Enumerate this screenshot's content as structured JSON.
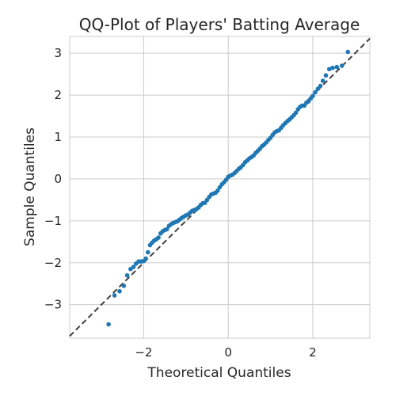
{
  "chart_data": {
    "type": "scatter",
    "title": "QQ-Plot of Players' Batting Average",
    "xlabel": "Theoretical Quantiles",
    "ylabel": "Sample Quantiles",
    "xlim": [
      -3.75,
      3.35
    ],
    "ylim": [
      -3.8,
      3.4
    ],
    "xticks": [
      -2,
      0,
      2
    ],
    "yticks": [
      -3,
      -2,
      -1,
      0,
      1,
      2,
      3
    ],
    "xtick_labels": [
      "−2",
      "0",
      "2"
    ],
    "ytick_labels": [
      "−3",
      "−2",
      "−1",
      "0",
      "1",
      "2",
      "3"
    ],
    "grid": true,
    "legend": "none",
    "point_color": "#1f77b4",
    "line_color": "#404040",
    "reference_line": {
      "slope": 1,
      "intercept": 0,
      "style": "dashed"
    },
    "points": {
      "x": [
        -2.83,
        -2.69,
        -2.57,
        -2.47,
        -2.39,
        -2.31,
        -2.24,
        -2.18,
        -2.12,
        -2.06,
        -2.0,
        -1.95,
        -1.9,
        -1.85,
        -1.8,
        -1.75,
        -1.7,
        -1.65,
        -1.6,
        -1.55,
        -1.5,
        -1.45,
        -1.4,
        -1.35,
        -1.3,
        -1.25,
        -1.2,
        -1.15,
        -1.1,
        -1.05,
        -1.0,
        -0.95,
        -0.9,
        -0.85,
        -0.8,
        -0.75,
        -0.7,
        -0.65,
        -0.6,
        -0.55,
        -0.5,
        -0.45,
        -0.4,
        -0.35,
        -0.3,
        -0.25,
        -0.2,
        -0.15,
        -0.1,
        -0.05,
        0.0,
        0.05,
        0.1,
        0.15,
        0.2,
        0.25,
        0.3,
        0.35,
        0.4,
        0.45,
        0.5,
        0.55,
        0.6,
        0.65,
        0.7,
        0.75,
        0.8,
        0.85,
        0.9,
        0.95,
        1.0,
        1.05,
        1.1,
        1.15,
        1.2,
        1.25,
        1.3,
        1.35,
        1.4,
        1.45,
        1.5,
        1.55,
        1.6,
        1.65,
        1.7,
        1.75,
        1.8,
        1.85,
        1.9,
        1.95,
        2.0,
        2.06,
        2.12,
        2.18,
        2.24,
        2.31,
        2.39,
        2.47,
        2.57,
        2.69,
        2.83
      ],
      "y": [
        -3.47,
        -2.78,
        -2.68,
        -2.55,
        -2.3,
        -2.15,
        -2.1,
        -2.02,
        -1.97,
        -1.97,
        -1.96,
        -1.9,
        -1.75,
        -1.58,
        -1.52,
        -1.47,
        -1.44,
        -1.4,
        -1.3,
        -1.25,
        -1.22,
        -1.2,
        -1.12,
        -1.08,
        -1.05,
        -1.03,
        -1.01,
        -0.97,
        -0.93,
        -0.9,
        -0.87,
        -0.85,
        -0.8,
        -0.76,
        -0.74,
        -0.72,
        -0.68,
        -0.62,
        -0.58,
        -0.57,
        -0.5,
        -0.43,
        -0.37,
        -0.35,
        -0.33,
        -0.28,
        -0.2,
        -0.13,
        -0.08,
        -0.02,
        0.05,
        0.08,
        0.1,
        0.14,
        0.19,
        0.24,
        0.28,
        0.33,
        0.4,
        0.44,
        0.49,
        0.52,
        0.56,
        0.62,
        0.67,
        0.72,
        0.78,
        0.82,
        0.87,
        0.93,
        0.98,
        1.05,
        1.11,
        1.14,
        1.16,
        1.22,
        1.28,
        1.33,
        1.38,
        1.42,
        1.47,
        1.52,
        1.58,
        1.66,
        1.72,
        1.75,
        1.75,
        1.82,
        1.85,
        1.92,
        1.98,
        2.07,
        2.15,
        2.22,
        2.34,
        2.47,
        2.62,
        2.65,
        2.67,
        2.7,
        3.03
      ]
    }
  }
}
